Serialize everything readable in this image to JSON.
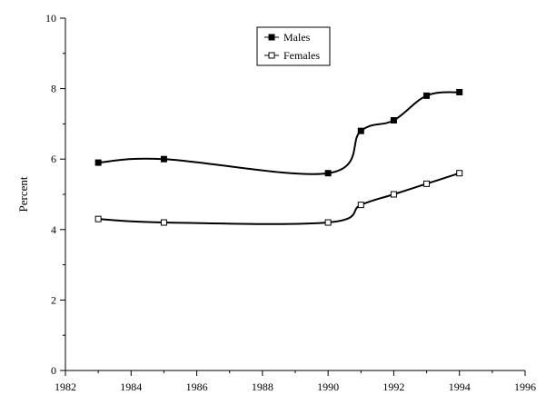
{
  "chart_data": {
    "type": "line",
    "title": "",
    "xlabel": "",
    "ylabel": "Percent",
    "xlim": [
      1982,
      1996
    ],
    "ylim": [
      0,
      10
    ],
    "x_ticks": [
      1982,
      1984,
      1986,
      1988,
      1990,
      1992,
      1994,
      1996
    ],
    "y_ticks": [
      0,
      2,
      4,
      6,
      8,
      10
    ],
    "grid": false,
    "legend_position": "top-center",
    "series": [
      {
        "name": "Males",
        "marker": "filled-square",
        "color": "#000000",
        "x": [
          1983,
          1985,
          1990,
          1991,
          1992,
          1993,
          1994
        ],
        "values": [
          5.9,
          6.0,
          5.6,
          6.8,
          7.1,
          7.8,
          7.9
        ]
      },
      {
        "name": "Females",
        "marker": "open-square",
        "color": "#000000",
        "x": [
          1983,
          1985,
          1990,
          1991,
          1992,
          1993,
          1994
        ],
        "values": [
          4.3,
          4.2,
          4.2,
          4.7,
          5.0,
          5.3,
          5.6
        ]
      }
    ]
  }
}
